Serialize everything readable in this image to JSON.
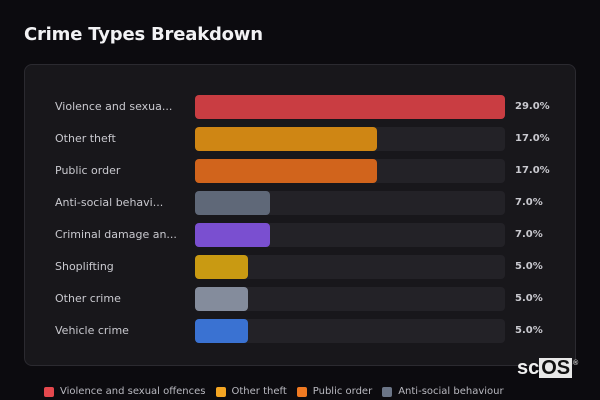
{
  "title": "Crime Types Breakdown",
  "chart_data": {
    "type": "bar",
    "orientation": "horizontal",
    "title": "Crime Types Breakdown",
    "categories": [
      "Violence and sexual offences",
      "Other theft",
      "Public order",
      "Anti-social behaviour",
      "Criminal damage and arson",
      "Shoplifting",
      "Other crime",
      "Vehicle crime"
    ],
    "display_labels": [
      "Violence and sexua...",
      "Other theft",
      "Public order",
      "Anti-social behavi...",
      "Criminal damage an...",
      "Shoplifting",
      "Other crime",
      "Vehicle crime"
    ],
    "values": [
      29.0,
      17.0,
      17.0,
      7.0,
      7.0,
      5.0,
      5.0,
      5.0
    ],
    "value_labels": [
      "29.0%",
      "17.0%",
      "17.0%",
      "7.0%",
      "7.0%",
      "5.0%",
      "5.0%",
      "5.0%"
    ],
    "colors": [
      "#c93d42",
      "#cf8614",
      "#d1641c",
      "#5f6878",
      "#7a4fd0",
      "#c99a12",
      "#848c9c",
      "#3a72d2"
    ],
    "unit": "%",
    "scale": "relative to max",
    "grid": false,
    "legend_position": "bottom"
  },
  "rows": [
    {
      "label": "Violence and sexua...",
      "value": "29.0%",
      "pct": 100,
      "color": "#c93d42"
    },
    {
      "label": "Other theft",
      "value": "17.0%",
      "pct": 58.6,
      "color": "#cf8614"
    },
    {
      "label": "Public order",
      "value": "17.0%",
      "pct": 58.6,
      "color": "#d1641c"
    },
    {
      "label": "Anti-social behavi...",
      "value": "7.0%",
      "pct": 24.1,
      "color": "#5f6878"
    },
    {
      "label": "Criminal damage an...",
      "value": "7.0%",
      "pct": 24.1,
      "color": "#7a4fd0"
    },
    {
      "label": "Shoplifting",
      "value": "5.0%",
      "pct": 17.2,
      "color": "#c99a12"
    },
    {
      "label": "Other crime",
      "value": "5.0%",
      "pct": 17.2,
      "color": "#848c9c"
    },
    {
      "label": "Vehicle crime",
      "value": "5.0%",
      "pct": 17.2,
      "color": "#3a72d2"
    }
  ],
  "legend": [
    {
      "label": "Violence and sexual offences",
      "color": "#e5484d"
    },
    {
      "label": "Other theft",
      "color": "#f5a623"
    },
    {
      "label": "Public order",
      "color": "#f07a22"
    },
    {
      "label": "Anti-social behaviour",
      "color": "#6b7587"
    }
  ],
  "logo": {
    "prefix": "sc",
    "highlight": "OS",
    "mark": "®"
  }
}
